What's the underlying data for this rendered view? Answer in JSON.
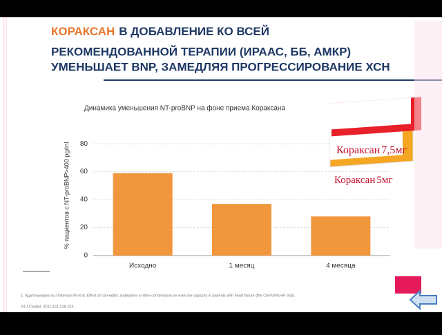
{
  "slide": {
    "title_highlight": "КОРАКСАН",
    "title_lines": [
      "В ДОБАВЛЕНИЕ КО ВСЕЙ",
      "РЕКОМЕНДОВАННОЙ ТЕРАПИИ (ИРААС, ББ, АМКР)",
      "УМЕНЬШАЕТ BNP, ЗАМЕДЛЯЯ ПРОГРЕССИРОВАНИЕ ХСН"
    ],
    "footnote": [
      "1. Адаптировано из Volterrani M et al. Effect of carvedilol, ivabradine or their combination on exercise capacity in patients with heart failure (the CARVIVA HF trial).",
      "Int J Cardiol. 2011;151:218-224."
    ],
    "products": [
      {
        "name": "Кораксан",
        "dose": "7,5мг"
      },
      {
        "name": "Кораксан",
        "dose": "5мг"
      }
    ]
  },
  "chart_data": {
    "type": "bar",
    "title": "Динамика уменьшения NT-proBNP на фоне приема Кораксана",
    "y_label": "% пациентов с NT-proBNP>400 pg/ml",
    "categories": [
      "Исходно",
      "1 месяц",
      "4 месяца"
    ],
    "values": [
      59,
      37,
      28
    ],
    "color": "#f0963c",
    "ylim": [
      0,
      85
    ],
    "yticks": [
      0,
      20,
      40,
      60,
      80
    ],
    "grid": true
  }
}
